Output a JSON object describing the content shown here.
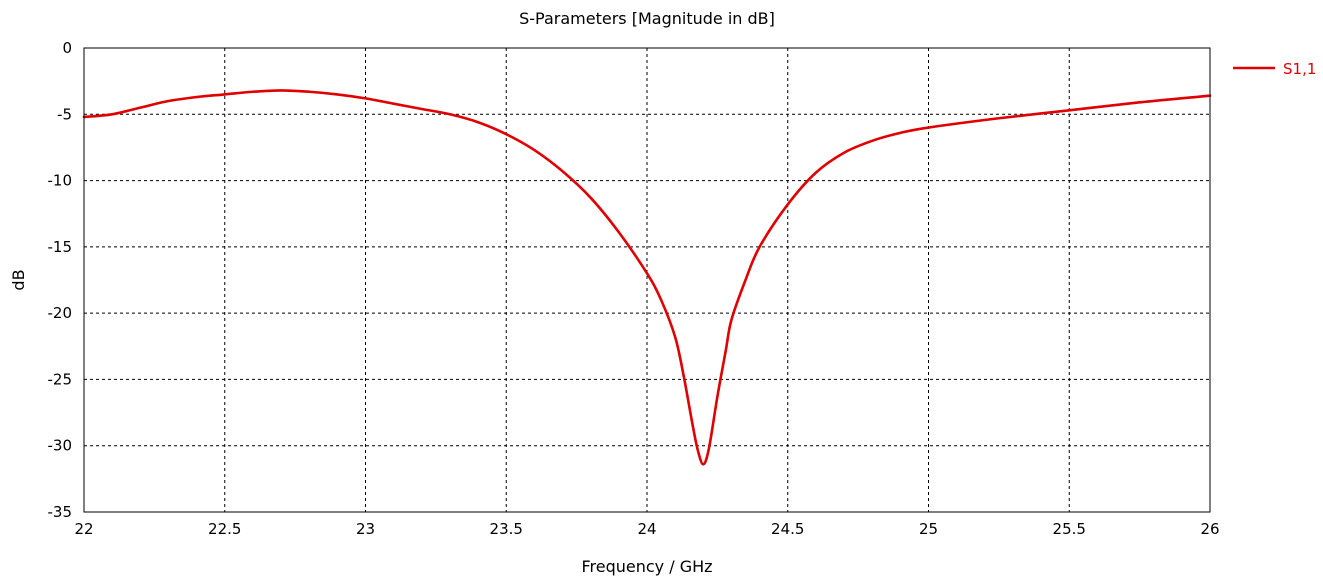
{
  "chart_data": {
    "type": "line",
    "title": "S-Parameters [Magnitude in dB]",
    "xlabel": "Frequency / GHz",
    "ylabel": "dB",
    "xlim": [
      22,
      26
    ],
    "ylim": [
      -35,
      0
    ],
    "x_ticks": [
      22,
      22.5,
      23,
      23.5,
      24,
      24.5,
      25,
      25.5,
      26
    ],
    "x_tick_labels": [
      "22",
      "22.5",
      "23",
      "23.5",
      "24",
      "24.5",
      "25",
      "25.5",
      "26"
    ],
    "y_ticks": [
      0,
      -5,
      -10,
      -15,
      -20,
      -25,
      -30,
      -35
    ],
    "y_tick_labels": [
      "0",
      "-5",
      "-10",
      "-15",
      "-20",
      "-25",
      "-30",
      "-35"
    ],
    "grid": true,
    "legend_position": "top-right outside",
    "series": [
      {
        "name": "S1,1",
        "color": "#e00000",
        "x": [
          22.0,
          22.1,
          22.2,
          22.3,
          22.4,
          22.5,
          22.6,
          22.7,
          22.8,
          22.9,
          23.0,
          23.1,
          23.2,
          23.3,
          23.4,
          23.5,
          23.6,
          23.7,
          23.8,
          23.9,
          24.0,
          24.05,
          24.1,
          24.13,
          24.16,
          24.18,
          24.2,
          24.22,
          24.25,
          24.28,
          24.3,
          24.35,
          24.4,
          24.5,
          24.6,
          24.7,
          24.8,
          24.9,
          25.0,
          25.25,
          25.5,
          25.75,
          26.0
        ],
        "y": [
          -5.2,
          -5.0,
          -4.5,
          -4.0,
          -3.7,
          -3.5,
          -3.3,
          -3.2,
          -3.3,
          -3.5,
          -3.8,
          -4.2,
          -4.6,
          -5.0,
          -5.6,
          -6.5,
          -7.7,
          -9.3,
          -11.3,
          -13.9,
          -17.0,
          -19.0,
          -21.8,
          -24.7,
          -28.2,
          -30.3,
          -31.4,
          -30.2,
          -26.3,
          -22.8,
          -20.5,
          -17.5,
          -15.0,
          -11.8,
          -9.4,
          -7.9,
          -7.0,
          -6.4,
          -6.0,
          -5.3,
          -4.7,
          -4.1,
          -3.6
        ]
      }
    ]
  }
}
